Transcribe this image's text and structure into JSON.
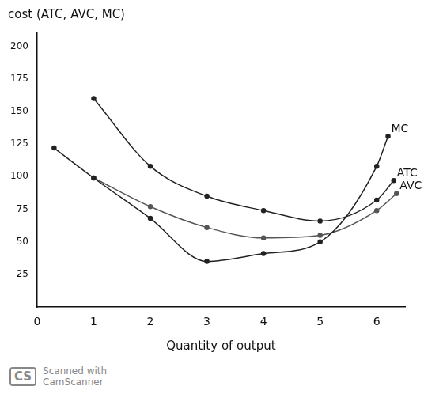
{
  "chart_data": {
    "type": "line",
    "ylabel": "cost (ATC, AVC, MC)",
    "xlabel": "Quantity of output",
    "xlim": [
      0,
      6.5
    ],
    "xticks": [
      0,
      1,
      2,
      3,
      4,
      5,
      6
    ],
    "ylim": [
      0,
      210
    ],
    "yticks": [
      25,
      50,
      75,
      100,
      125,
      150,
      175,
      200
    ],
    "grid": false,
    "series": [
      {
        "name": "MC",
        "color": "#222222",
        "marker": "circle",
        "x": [
          0.3,
          1,
          2,
          3,
          4,
          5,
          6,
          6.2
        ],
        "values": [
          122,
          99,
          68,
          35,
          41,
          50,
          108,
          131
        ]
      },
      {
        "name": "ATC",
        "color": "#222222",
        "marker": "circle",
        "x": [
          1,
          2,
          3,
          4,
          5,
          6,
          6.3
        ],
        "values": [
          160,
          108,
          85,
          74,
          66,
          82,
          97
        ]
      },
      {
        "name": "AVC",
        "color": "#555555",
        "marker": "circle",
        "x": [
          1,
          2,
          3,
          4,
          5,
          6,
          6.35
        ],
        "values": [
          99,
          77,
          61,
          53,
          55,
          74,
          87
        ]
      }
    ],
    "watermark": {
      "logo": "CS",
      "text": "Scanned with CamScanner"
    }
  }
}
